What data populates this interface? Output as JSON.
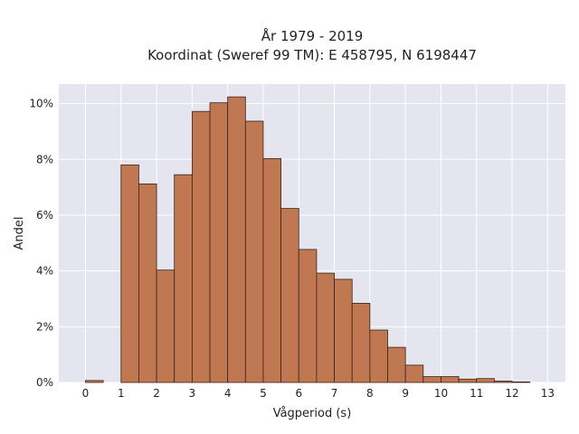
{
  "chart_data": {
    "type": "bar",
    "title": "År 1979 - 2019",
    "subtitle": "Koordinat (Sweref 99 TM): E 458795, N 6198447",
    "xlabel": "Vågperiod (s)",
    "ylabel": "Andel",
    "xlim": [
      -0.75,
      13.5
    ],
    "ylim": [
      0,
      10.7
    ],
    "x_ticks": [
      0,
      1,
      2,
      3,
      4,
      5,
      6,
      7,
      8,
      9,
      10,
      11,
      12,
      13
    ],
    "y_ticks": [
      0,
      2,
      4,
      6,
      8,
      10
    ],
    "y_tick_labels": [
      "0%",
      "2%",
      "4%",
      "6%",
      "8%",
      "10%"
    ],
    "grid": true,
    "bin_width": 0.5,
    "bins": [
      {
        "x": 0.0,
        "value": 0.07
      },
      {
        "x": 1.0,
        "value": 7.8
      },
      {
        "x": 1.5,
        "value": 7.12
      },
      {
        "x": 2.0,
        "value": 4.03
      },
      {
        "x": 2.5,
        "value": 7.45
      },
      {
        "x": 3.0,
        "value": 9.72
      },
      {
        "x": 3.5,
        "value": 10.03
      },
      {
        "x": 4.0,
        "value": 10.24
      },
      {
        "x": 4.5,
        "value": 9.37
      },
      {
        "x": 5.0,
        "value": 8.03
      },
      {
        "x": 5.5,
        "value": 6.24
      },
      {
        "x": 6.0,
        "value": 4.77
      },
      {
        "x": 6.5,
        "value": 3.92
      },
      {
        "x": 7.0,
        "value": 3.7
      },
      {
        "x": 7.5,
        "value": 2.84
      },
      {
        "x": 8.0,
        "value": 1.88
      },
      {
        "x": 8.5,
        "value": 1.26
      },
      {
        "x": 9.0,
        "value": 0.62
      },
      {
        "x": 9.5,
        "value": 0.21
      },
      {
        "x": 10.0,
        "value": 0.21
      },
      {
        "x": 10.5,
        "value": 0.12
      },
      {
        "x": 11.0,
        "value": 0.14
      },
      {
        "x": 11.5,
        "value": 0.05
      },
      {
        "x": 12.0,
        "value": 0.02
      }
    ],
    "colors": {
      "bar_fill": "#c07853",
      "bar_edge": "#3a2418",
      "plot_background": "#e5e5f0",
      "grid": "#ffffff"
    }
  }
}
